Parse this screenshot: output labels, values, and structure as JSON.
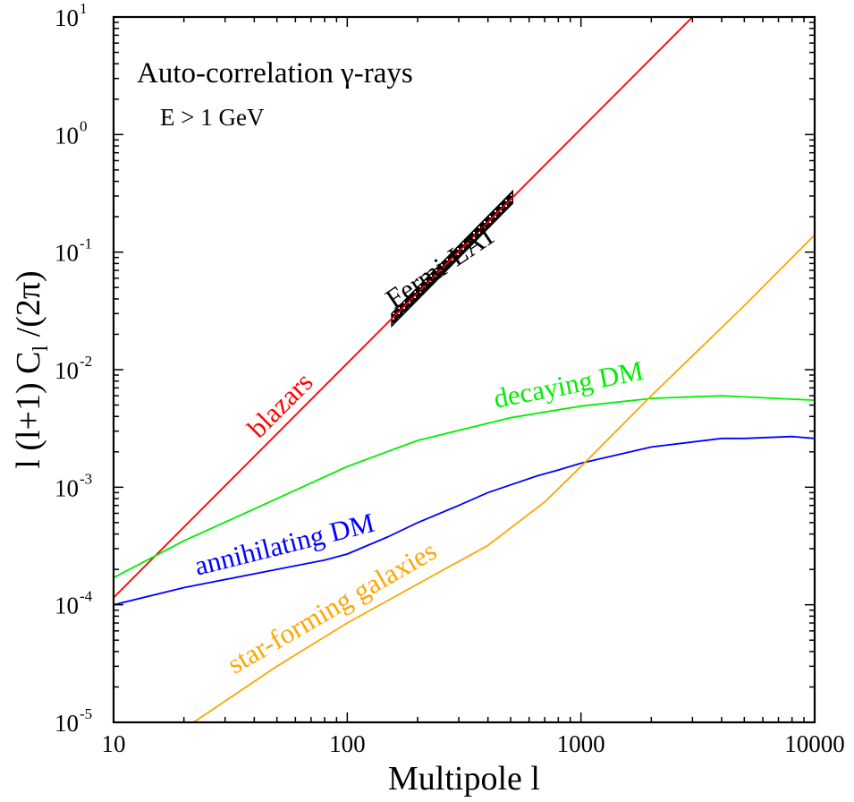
{
  "chart_data": {
    "type": "line",
    "title": "Auto-correlation   γ-rays",
    "subtitle": "E > 1 GeV",
    "xlabel": "Multipole l",
    "ylabel": "l (l+1) C_l /(2π)",
    "xscale": "log",
    "yscale": "log",
    "xlim": [
      10,
      10000
    ],
    "ylim": [
      1e-05,
      10
    ],
    "grid": false,
    "x_ticks": [
      {
        "value": 10,
        "label": "10"
      },
      {
        "value": 100,
        "label": "100"
      },
      {
        "value": 1000,
        "label": "1000"
      },
      {
        "value": 10000,
        "label": "10000"
      }
    ],
    "y_ticks": [
      {
        "value": 1e-05,
        "base": "10",
        "exp": "-5"
      },
      {
        "value": 0.0001,
        "base": "10",
        "exp": "-4"
      },
      {
        "value": 0.001,
        "base": "10",
        "exp": "-3"
      },
      {
        "value": 0.01,
        "base": "10",
        "exp": "-2"
      },
      {
        "value": 0.1,
        "base": "10",
        "exp": "-1"
      },
      {
        "value": 1,
        "base": "10",
        "exp": "0"
      },
      {
        "value": 10,
        "base": "10",
        "exp": "1"
      }
    ],
    "series": [
      {
        "name": "blazars",
        "color": "#ff0000",
        "x": [
          10,
          3000
        ],
        "y": [
          0.000115,
          10
        ]
      },
      {
        "name": "decaying DM",
        "color": "#00ee00",
        "x": [
          10,
          20,
          50,
          100,
          200,
          500,
          1000,
          2000,
          4000,
          10000
        ],
        "y": [
          0.00017,
          0.00035,
          0.0008,
          0.0015,
          0.0025,
          0.0039,
          0.0049,
          0.0057,
          0.006,
          0.0055
        ]
      },
      {
        "name": "annihilating DM",
        "color": "#0000ff",
        "x": [
          10,
          20,
          50,
          80,
          100,
          150,
          200,
          300,
          400,
          650,
          800,
          1000,
          2000,
          4000,
          5000,
          8000,
          10000
        ],
        "y": [
          0.0001,
          0.00014,
          0.0002,
          0.00024,
          0.00027,
          0.00038,
          0.0005,
          0.0007,
          0.0009,
          0.00125,
          0.0014,
          0.0016,
          0.0022,
          0.0026,
          0.0026,
          0.0027,
          0.0026
        ]
      },
      {
        "name": "star-forming galaxies",
        "color": "#ffa500",
        "x": [
          22,
          50,
          100,
          200,
          400,
          700,
          1000,
          2000,
          5000,
          10000
        ],
        "y": [
          1e-05,
          3e-05,
          7e-05,
          0.00015,
          0.00032,
          0.00075,
          0.0015,
          0.006,
          0.035,
          0.14
        ]
      }
    ],
    "band": {
      "name": "Fermi-LAT",
      "x": [
        155,
        510
      ],
      "y_low": [
        0.0235,
        0.26
      ],
      "y_high": [
        0.03,
        0.33
      ]
    },
    "series_labels": {
      "blazars": "blazars",
      "decaying_dm": "decaying DM",
      "annihilating_dm": "annihilating DM",
      "star_forming": "star-forming galaxies",
      "fermi": "Fermi-LAT"
    },
    "label_rotations_deg": {
      "blazars": -45,
      "decaying_dm": -11,
      "annihilating_dm": -14,
      "star_forming": -30,
      "fermi": -34
    }
  }
}
